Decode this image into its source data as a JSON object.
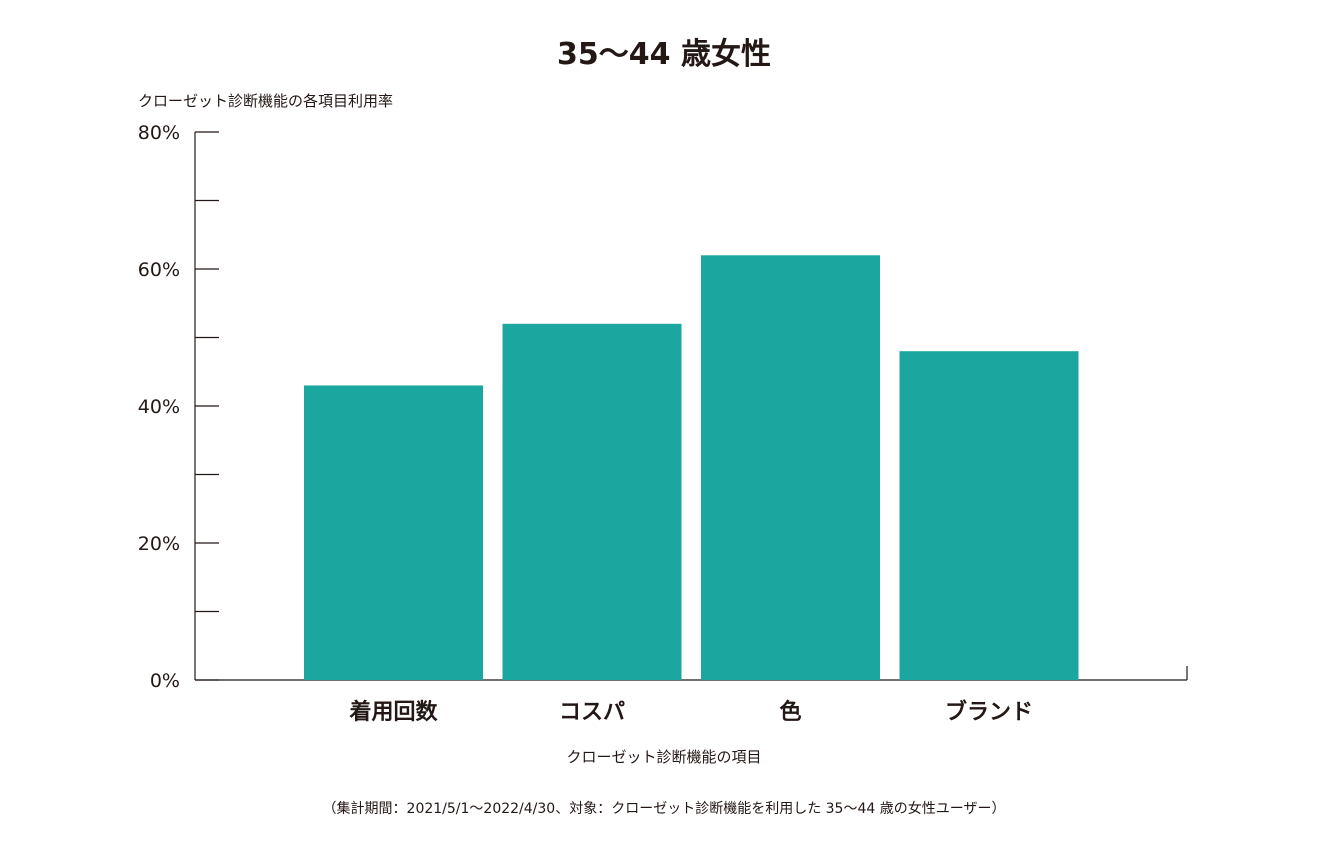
{
  "chart_data": {
    "type": "bar",
    "title": "35〜44 歳女性",
    "ylabel": "クローゼット診断機能の各項目利用率",
    "xlabel": "クローゼット診断機能の項目",
    "categories": [
      "着用回数",
      "コスパ",
      "色",
      "ブランド"
    ],
    "values": [
      43,
      52,
      62,
      48
    ],
    "ylim": [
      0,
      80
    ],
    "ytick_labels": [
      "0%",
      "20%",
      "40%",
      "60%",
      "80%"
    ],
    "grid": false,
    "bar_color": "#1ba69f",
    "axis_color": "#231815"
  },
  "footnote": "（集計期間：2021/5/1〜2022/4/30、対象：クローゼット診断機能を利用した 35〜44 歳の女性ユーザー）"
}
